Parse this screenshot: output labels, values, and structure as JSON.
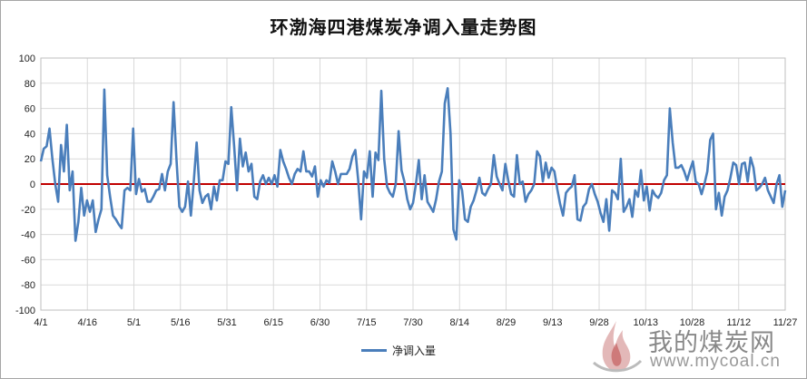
{
  "chart_data": {
    "type": "line",
    "title": "环渤海四港煤炭净调入量走势图",
    "xlabel": "",
    "ylabel": "",
    "ylim": [
      -100,
      100
    ],
    "yticks": [
      100,
      80,
      60,
      40,
      20,
      0,
      -20,
      -40,
      -60,
      -80,
      -100
    ],
    "xtick_labels": [
      "4/1",
      "4/16",
      "5/1",
      "5/16",
      "5/31",
      "6/15",
      "6/30",
      "7/15",
      "7/30",
      "8/14",
      "8/29",
      "9/13",
      "9/28",
      "10/13",
      "10/28",
      "11/12",
      "11/27"
    ],
    "grid": true,
    "legend_position": "bottom",
    "reference_line": 0,
    "colors": {
      "series": "#4a7ebb",
      "zero_line": "#c00000",
      "grid": "#d9d9d9"
    },
    "series": [
      {
        "name": "净调入量",
        "start_date": "4/1",
        "values": [
          18,
          28,
          30,
          44,
          20,
          0,
          -14,
          31,
          10,
          47,
          -5,
          10,
          -45,
          -30,
          -3,
          -25,
          -13,
          -22,
          -13,
          -38,
          -28,
          -20,
          75,
          7,
          -10,
          -25,
          -28,
          -32,
          -35,
          -5,
          -3,
          -5,
          44,
          -8,
          4,
          -6,
          -4,
          -14,
          -14,
          -10,
          -5,
          -4,
          8,
          -5,
          10,
          16,
          65,
          20,
          -18,
          -22,
          -18,
          2,
          -25,
          2,
          33,
          -5,
          -15,
          -10,
          -8,
          -20,
          -2,
          -13,
          3,
          3,
          18,
          16,
          61,
          30,
          -5,
          36,
          14,
          25,
          10,
          16,
          -10,
          -12,
          2,
          7,
          0,
          5,
          0,
          7,
          -2,
          27,
          18,
          12,
          5,
          0,
          8,
          12,
          10,
          26,
          10,
          10,
          6,
          14,
          -10,
          3,
          -2,
          3,
          1,
          18,
          10,
          0,
          8,
          8,
          8,
          12,
          22,
          27,
          3,
          -28,
          10,
          5,
          26,
          -10,
          25,
          19,
          74,
          20,
          -2,
          -7,
          -10,
          0,
          42,
          11,
          2,
          -12,
          -20,
          -15,
          0,
          19,
          -12,
          7,
          -14,
          -18,
          -22,
          -12,
          2,
          10,
          64,
          76,
          40,
          -36,
          -44,
          3,
          -5,
          -28,
          -30,
          -18,
          -13,
          -5,
          5,
          -7,
          -9,
          -4,
          0,
          23,
          6,
          0,
          -5,
          16,
          3,
          -8,
          -10,
          23,
          0,
          2,
          -14,
          -8,
          -5,
          0,
          26,
          22,
          2,
          17,
          5,
          13,
          10,
          -4,
          -16,
          -25,
          -7,
          -4,
          -2,
          7,
          -28,
          -29,
          -18,
          -15,
          -4,
          0,
          -8,
          -14,
          -23,
          -30,
          -12,
          -37,
          -5,
          -7,
          -12,
          20,
          -22,
          -18,
          -12,
          -26,
          -5,
          -10,
          11,
          -13,
          -2,
          -21,
          -5,
          -9,
          -11,
          -7,
          3,
          7,
          60,
          33,
          13,
          13,
          15,
          10,
          3,
          11,
          18,
          2,
          0,
          -8,
          0,
          10,
          35,
          40,
          -20,
          -7,
          -25,
          -10,
          -5,
          5,
          17,
          15,
          0,
          16,
          17,
          2,
          21,
          13,
          -5,
          -3,
          0,
          5,
          -5,
          -10,
          -15,
          0,
          7,
          -18,
          -5
        ]
      }
    ]
  },
  "watermark": {
    "brand": "我的煤炭网",
    "url": "www.mycoal.cn"
  }
}
